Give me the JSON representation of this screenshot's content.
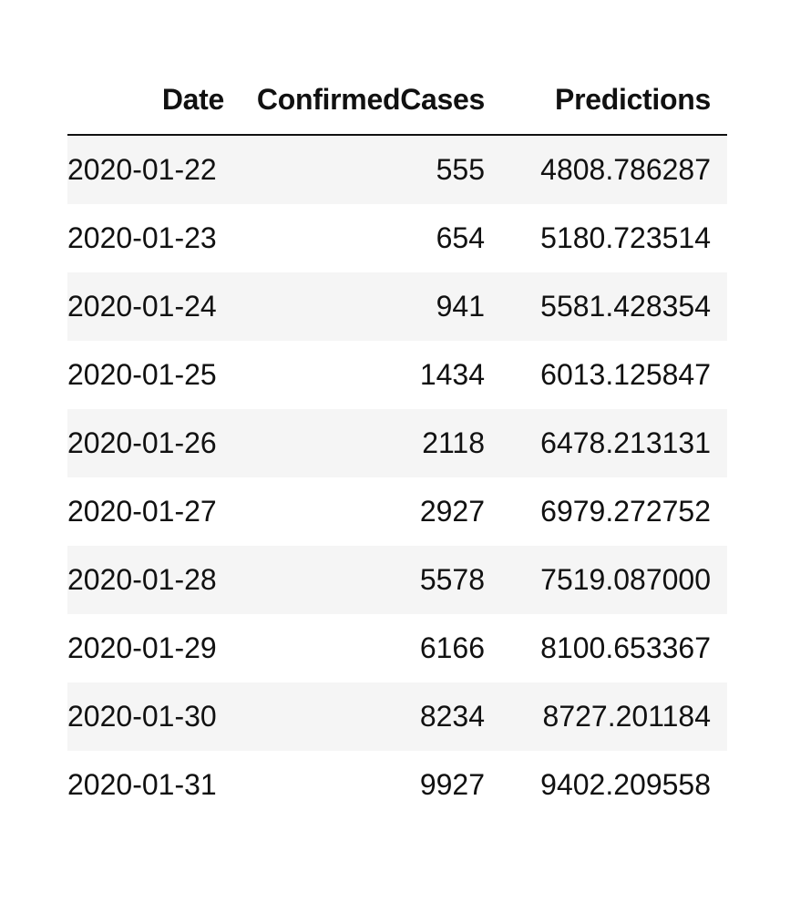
{
  "table": {
    "columns": [
      "Date",
      "ConfirmedCases",
      "Predictions"
    ],
    "rows": [
      {
        "date": "2020-01-22",
        "confirmed": "555",
        "prediction": "4808.786287"
      },
      {
        "date": "2020-01-23",
        "confirmed": "654",
        "prediction": "5180.723514"
      },
      {
        "date": "2020-01-24",
        "confirmed": "941",
        "prediction": "5581.428354"
      },
      {
        "date": "2020-01-25",
        "confirmed": "1434",
        "prediction": "6013.125847"
      },
      {
        "date": "2020-01-26",
        "confirmed": "2118",
        "prediction": "6478.213131"
      },
      {
        "date": "2020-01-27",
        "confirmed": "2927",
        "prediction": "6979.272752"
      },
      {
        "date": "2020-01-28",
        "confirmed": "5578",
        "prediction": "7519.087000"
      },
      {
        "date": "2020-01-29",
        "confirmed": "6166",
        "prediction": "8100.653367"
      },
      {
        "date": "2020-01-30",
        "confirmed": "8234",
        "prediction": "8727.201184"
      },
      {
        "date": "2020-01-31",
        "confirmed": "9927",
        "prediction": "9402.209558"
      }
    ]
  },
  "colors": {
    "stripe": "#f5f5f5",
    "text": "#111111",
    "header_rule": "#111111"
  }
}
